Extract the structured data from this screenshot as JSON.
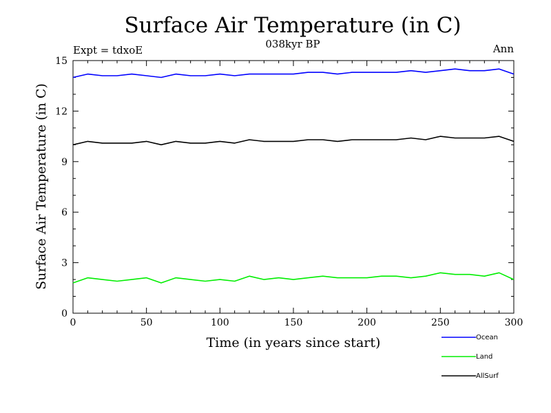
{
  "chart_data": {
    "type": "line",
    "title": "Surface Air Temperature (in C)",
    "subtitle_left": "Expt = tdxoE",
    "subtitle_center": "038kyr BP",
    "subtitle_right": "Ann",
    "xlabel": "Time (in years since start)",
    "ylabel": "Surface Air Temperature (in C)",
    "xlim": [
      0,
      300
    ],
    "ylim": [
      0,
      15
    ],
    "xticks": [
      0,
      50,
      100,
      150,
      200,
      250,
      300
    ],
    "xtick_labels": [
      "0",
      "50",
      "100",
      "150",
      "200",
      "250",
      "300"
    ],
    "yticks": [
      0,
      3,
      6,
      9,
      12,
      15
    ],
    "ytick_labels": [
      "0",
      "3",
      "6",
      "9",
      "12",
      "15"
    ],
    "grid": false,
    "legend_position": "bottom-right, below plot",
    "series": [
      {
        "name": "Ocean",
        "color": "#0000ff",
        "x": [
          0,
          10,
          20,
          30,
          40,
          50,
          60,
          70,
          80,
          90,
          100,
          110,
          120,
          130,
          140,
          150,
          160,
          170,
          180,
          190,
          200,
          210,
          220,
          230,
          240,
          250,
          260,
          270,
          280,
          290,
          300
        ],
        "values": [
          14.0,
          14.2,
          14.1,
          14.1,
          14.2,
          14.1,
          14.0,
          14.2,
          14.1,
          14.1,
          14.2,
          14.1,
          14.2,
          14.2,
          14.2,
          14.2,
          14.3,
          14.3,
          14.2,
          14.3,
          14.3,
          14.3,
          14.3,
          14.4,
          14.3,
          14.4,
          14.5,
          14.4,
          14.4,
          14.5,
          14.2
        ]
      },
      {
        "name": "Land",
        "color": "#00ee00",
        "x": [
          0,
          10,
          20,
          30,
          40,
          50,
          60,
          70,
          80,
          90,
          100,
          110,
          120,
          130,
          140,
          150,
          160,
          170,
          180,
          190,
          200,
          210,
          220,
          230,
          240,
          250,
          260,
          270,
          280,
          290,
          300
        ],
        "values": [
          1.8,
          2.1,
          2.0,
          1.9,
          2.0,
          2.1,
          1.8,
          2.1,
          2.0,
          1.9,
          2.0,
          1.9,
          2.2,
          2.0,
          2.1,
          2.0,
          2.1,
          2.2,
          2.1,
          2.1,
          2.1,
          2.2,
          2.2,
          2.1,
          2.2,
          2.4,
          2.3,
          2.3,
          2.2,
          2.4,
          2.0
        ]
      },
      {
        "name": "AllSurf",
        "color": "#000000",
        "x": [
          0,
          10,
          20,
          30,
          40,
          50,
          60,
          70,
          80,
          90,
          100,
          110,
          120,
          130,
          140,
          150,
          160,
          170,
          180,
          190,
          200,
          210,
          220,
          230,
          240,
          250,
          260,
          270,
          280,
          290,
          300
        ],
        "values": [
          10.0,
          10.2,
          10.1,
          10.1,
          10.1,
          10.2,
          10.0,
          10.2,
          10.1,
          10.1,
          10.2,
          10.1,
          10.3,
          10.2,
          10.2,
          10.2,
          10.3,
          10.3,
          10.2,
          10.3,
          10.3,
          10.3,
          10.3,
          10.4,
          10.3,
          10.5,
          10.4,
          10.4,
          10.4,
          10.5,
          10.2
        ]
      }
    ]
  }
}
